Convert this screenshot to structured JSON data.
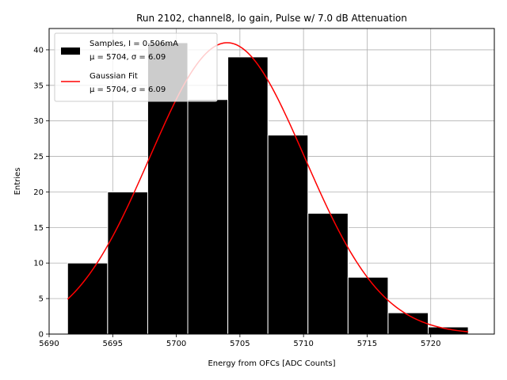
{
  "chart_data": {
    "type": "bar",
    "title": "Run 2102, channel8, lo gain, Pulse w/ 7.0 dB Attenuation",
    "xlabel": "Energy from OFCs [ADC Counts]",
    "ylabel": "Entries",
    "xlim": [
      5690,
      5725
    ],
    "ylim": [
      0,
      43
    ],
    "xticks": [
      5690,
      5695,
      5700,
      5705,
      5710,
      5715,
      5720
    ],
    "yticks": [
      0,
      5,
      10,
      15,
      20,
      25,
      30,
      35,
      40
    ],
    "grid": true,
    "legend_position": "top-left",
    "histogram": {
      "bin_edges": [
        5691.45,
        5694.6,
        5697.75,
        5700.9,
        5704.05,
        5707.2,
        5710.35,
        5713.5,
        5716.65,
        5719.8,
        5722.95
      ],
      "counts": [
        10,
        20,
        41,
        33,
        39,
        28,
        17,
        8,
        3,
        1
      ],
      "color": "#000000",
      "edge_color": "#ffffff"
    },
    "fit": {
      "type": "gaussian",
      "mu": 5704.0,
      "sigma": 6.09,
      "amplitude": 41.0,
      "x_range": [
        5691.45,
        5722.95
      ],
      "color": "#ff0000"
    },
    "legend": [
      {
        "line1": "Samples, I = 0.506mA",
        "line2": "μ = 5704, σ = 6.09",
        "kind": "patch"
      },
      {
        "line1": "Gaussian Fit",
        "line2": "μ = 5704, σ = 6.09",
        "kind": "line"
      }
    ]
  }
}
